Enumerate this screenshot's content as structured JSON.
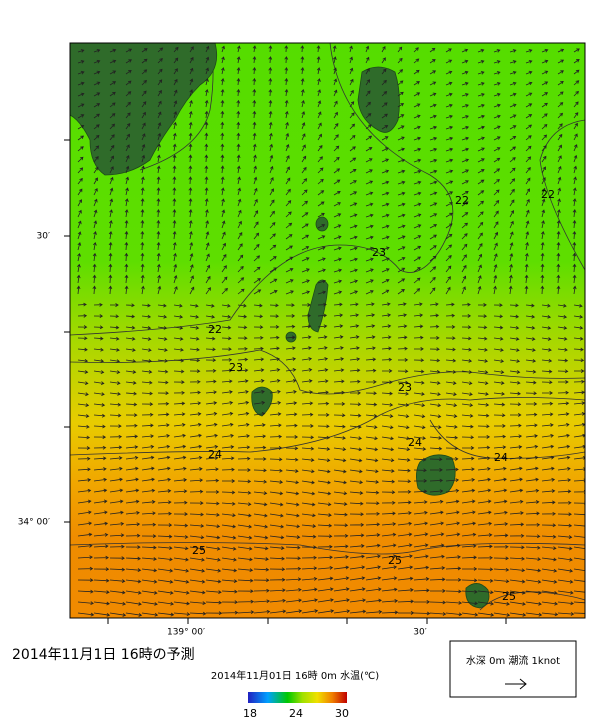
{
  "title": "2014年11月1日 16時の予測",
  "subtitle": "2014年11月01日 16時 0m 水温(℃)",
  "colorbar": {
    "ticks": [
      18,
      24,
      30
    ]
  },
  "lat_labels": [
    "30′",
    "34° 00′"
  ],
  "lon_labels": [
    "139° 00′",
    "30′"
  ],
  "contour_labels": [
    22,
    22,
    23,
    22,
    23,
    23,
    24,
    24,
    24,
    25,
    25,
    25
  ],
  "legend": {
    "text": "水深 0m 潮流 1knot"
  }
}
